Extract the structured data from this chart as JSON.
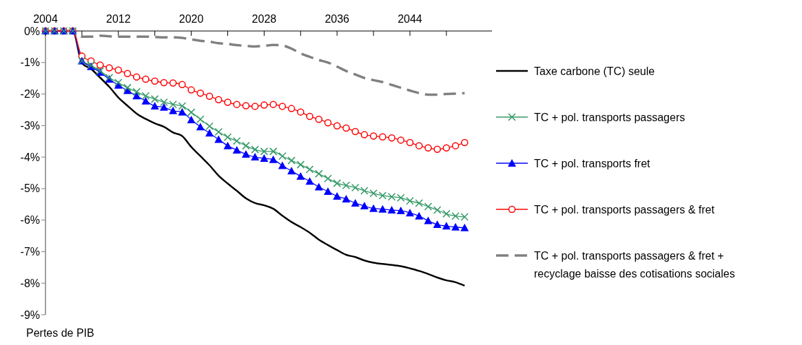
{
  "chart_data": {
    "type": "line",
    "ylabel": "Pertes de PIB",
    "legend": "right",
    "grid": false,
    "x": [
      2004,
      2005,
      2006,
      2007,
      2008,
      2009,
      2010,
      2011,
      2012,
      2013,
      2014,
      2015,
      2016,
      2017,
      2018,
      2019,
      2020,
      2021,
      2022,
      2023,
      2024,
      2025,
      2026,
      2027,
      2028,
      2029,
      2030,
      2031,
      2032,
      2033,
      2034,
      2035,
      2036,
      2037,
      2038,
      2039,
      2040,
      2041,
      2042,
      2043,
      2044,
      2045,
      2046,
      2047,
      2048,
      2049,
      2050
    ],
    "xlim": [
      2004,
      2053
    ],
    "xticks": [
      2004,
      {
        "value": 2008,
        "label": null
      },
      2012,
      {
        "value": 2016,
        "label": null
      },
      2020,
      {
        "value": 2024,
        "label": null
      },
      2028,
      {
        "value": 2032,
        "label": null
      },
      2036,
      {
        "value": 2040,
        "label": null
      },
      2044,
      {
        "value": 2048,
        "label": null
      }
    ],
    "ylim": [
      -9,
      0
    ],
    "yticks": [
      {
        "value": 0,
        "label": "0%"
      },
      {
        "value": -1,
        "label": "-1%"
      },
      {
        "value": -2,
        "label": "-2%"
      },
      {
        "value": -3,
        "label": "-3%"
      },
      {
        "value": -4,
        "label": "-4%"
      },
      {
        "value": -5,
        "label": "-5%"
      },
      {
        "value": -6,
        "label": "-6%"
      },
      {
        "value": -7,
        "label": "-7%"
      },
      {
        "value": -8,
        "label": "-8%"
      },
      {
        "value": -9,
        "label": "-9%"
      }
    ],
    "series": [
      {
        "name": "Taxe carbone (TC) seule",
        "color": "#000000",
        "marker": "none",
        "line_style": "solid",
        "values": [
          0,
          0,
          0,
          0,
          -1.02,
          -1.2,
          -1.48,
          -1.77,
          -2.11,
          -2.37,
          -2.62,
          -2.79,
          -2.93,
          -3.04,
          -3.22,
          -3.33,
          -3.68,
          -3.97,
          -4.26,
          -4.59,
          -4.84,
          -5.07,
          -5.31,
          -5.46,
          -5.53,
          -5.64,
          -5.86,
          -6.06,
          -6.22,
          -6.4,
          -6.62,
          -6.79,
          -6.95,
          -7.1,
          -7.17,
          -7.28,
          -7.35,
          -7.39,
          -7.42,
          -7.46,
          -7.53,
          -7.61,
          -7.71,
          -7.82,
          -7.91,
          -7.97,
          -8.08
        ]
      },
      {
        "name": "TC + pol. transports passagers",
        "color": "#339966",
        "marker": "cross",
        "line_style": "solid",
        "values": [
          0,
          0,
          0,
          0,
          -0.95,
          -1.09,
          -1.27,
          -1.48,
          -1.64,
          -1.8,
          -1.93,
          -2.06,
          -2.16,
          -2.26,
          -2.33,
          -2.38,
          -2.58,
          -2.8,
          -3.02,
          -3.2,
          -3.37,
          -3.49,
          -3.64,
          -3.76,
          -3.82,
          -3.82,
          -3.97,
          -4.11,
          -4.24,
          -4.39,
          -4.53,
          -4.68,
          -4.83,
          -4.9,
          -4.97,
          -5.07,
          -5.15,
          -5.22,
          -5.26,
          -5.29,
          -5.39,
          -5.46,
          -5.57,
          -5.68,
          -5.8,
          -5.87,
          -5.9
        ]
      },
      {
        "name": "TC + pol. transports fret",
        "color": "#0000ff",
        "marker": "triangle",
        "line_style": "solid",
        "values": [
          0,
          0,
          0,
          0,
          -0.95,
          -1.13,
          -1.31,
          -1.53,
          -1.72,
          -1.89,
          -2.06,
          -2.22,
          -2.38,
          -2.42,
          -2.53,
          -2.57,
          -2.82,
          -3.04,
          -3.24,
          -3.44,
          -3.64,
          -3.78,
          -3.91,
          -4.0,
          -4.04,
          -4.08,
          -4.27,
          -4.44,
          -4.61,
          -4.77,
          -4.95,
          -5.09,
          -5.24,
          -5.33,
          -5.46,
          -5.55,
          -5.63,
          -5.65,
          -5.68,
          -5.7,
          -5.77,
          -5.87,
          -6.02,
          -6.14,
          -6.19,
          -6.22,
          -6.24
        ]
      },
      {
        "name": "TC + pol. transports passagers & fret",
        "color": "#ff0000",
        "marker": "circle",
        "line_style": "solid",
        "values": [
          0,
          0,
          0,
          0,
          -0.8,
          -0.95,
          -1.08,
          -1.17,
          -1.24,
          -1.35,
          -1.46,
          -1.53,
          -1.59,
          -1.64,
          -1.65,
          -1.7,
          -1.87,
          -1.97,
          -2.07,
          -2.18,
          -2.26,
          -2.33,
          -2.37,
          -2.39,
          -2.35,
          -2.33,
          -2.39,
          -2.46,
          -2.57,
          -2.71,
          -2.8,
          -2.91,
          -3.01,
          -3.08,
          -3.19,
          -3.29,
          -3.33,
          -3.36,
          -3.39,
          -3.46,
          -3.54,
          -3.64,
          -3.71,
          -3.75,
          -3.71,
          -3.64,
          -3.54
        ]
      },
      {
        "name": "TC + pol. transports passagers & fret +\nrecyclage baisse des cotisations sociales",
        "color": "#808080",
        "marker": "none",
        "line_style": "dashed",
        "values": [
          0,
          0,
          0,
          0,
          -0.18,
          -0.18,
          -0.15,
          -0.17,
          -0.18,
          -0.18,
          -0.18,
          -0.18,
          -0.19,
          -0.2,
          -0.2,
          -0.22,
          -0.27,
          -0.31,
          -0.34,
          -0.39,
          -0.41,
          -0.45,
          -0.47,
          -0.49,
          -0.47,
          -0.44,
          -0.46,
          -0.56,
          -0.71,
          -0.82,
          -0.92,
          -1.0,
          -1.13,
          -1.27,
          -1.38,
          -1.49,
          -1.56,
          -1.62,
          -1.71,
          -1.8,
          -1.89,
          -1.97,
          -2.02,
          -2.02,
          -2.0,
          -1.99,
          -1.97
        ]
      }
    ]
  }
}
